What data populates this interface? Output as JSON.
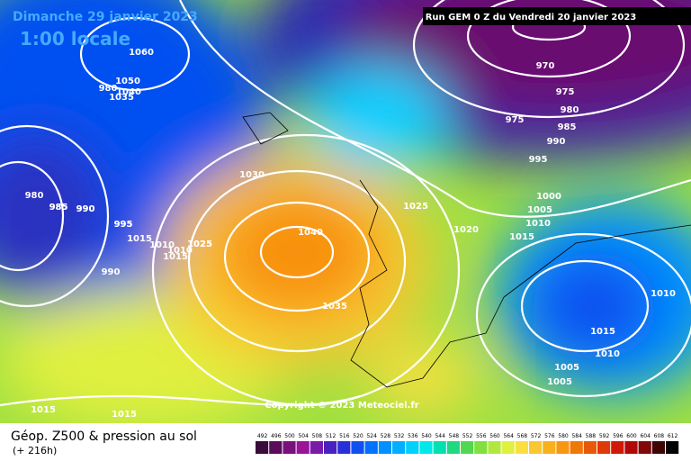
{
  "map": {
    "title": "Dimanche 29 janvier 2023",
    "time": "1:00 locale",
    "run": "Run GEM 0 Z du Vendredi 20 janvier 2023",
    "copyright": "Copyright © 2023 Meteociel.fr",
    "caption": "Géop. Z500 & pression au sol",
    "lead": "(+ 216h)",
    "isobar_labels": [
      1060,
      1050,
      1040,
      1035,
      1030,
      1025,
      1020,
      1015,
      1010,
      1005,
      1000,
      995,
      990,
      985,
      980,
      975,
      970,
      975,
      980,
      985,
      990,
      995,
      1040,
      1035,
      1025,
      1015,
      1010,
      1010,
      1015,
      1015,
      1005,
      1005,
      1010,
      1025,
      980,
      985,
      990,
      995,
      1010,
      990,
      1015,
      1015
    ],
    "colorbar": {
      "labels": [
        492,
        496,
        500,
        504,
        508,
        512,
        516,
        520,
        524,
        528,
        532,
        536,
        540,
        544,
        548,
        552,
        556,
        560,
        564,
        568,
        572,
        576,
        580,
        584,
        588,
        592,
        596,
        600,
        604,
        608,
        612
      ],
      "colors": [
        "#3a0a3a",
        "#5a0c5a",
        "#7a107a",
        "#9a149a",
        "#7a1aa8",
        "#4a20c0",
        "#2a30d8",
        "#1050f0",
        "#0070ff",
        "#0090ff",
        "#00b0ff",
        "#00d0ff",
        "#00e8e8",
        "#00e0b0",
        "#20d880",
        "#50d850",
        "#80e040",
        "#b0e840",
        "#e0f040",
        "#f8e040",
        "#f8c830",
        "#f8b020",
        "#f89810",
        "#f07808",
        "#e85808",
        "#e03808",
        "#d01808",
        "#b00808",
        "#800808",
        "#400404",
        "#000000"
      ]
    }
  }
}
